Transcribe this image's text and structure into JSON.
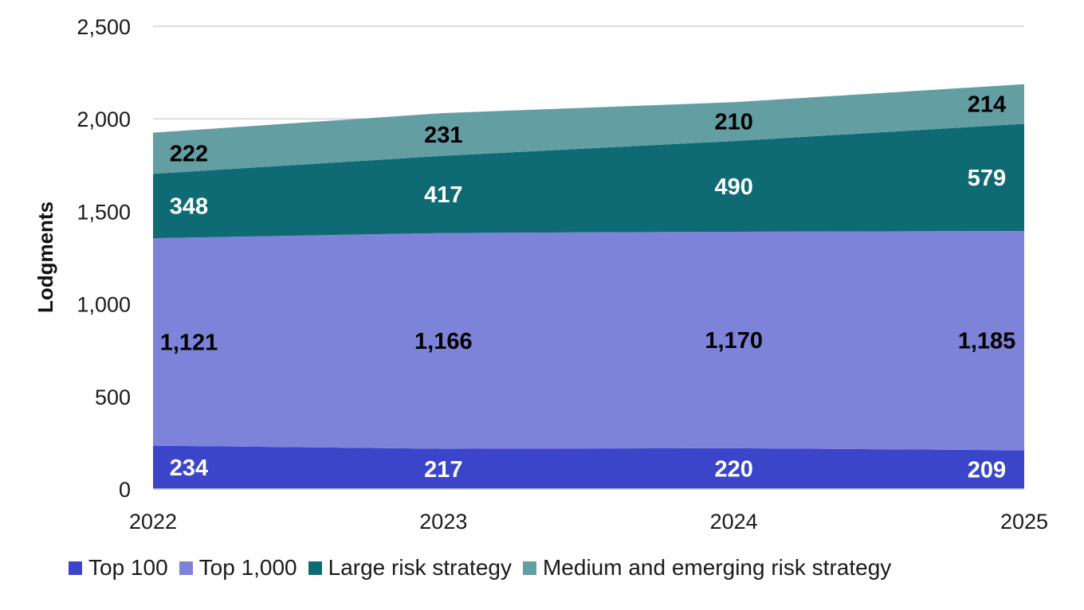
{
  "chart_data": {
    "type": "area",
    "stacked": true,
    "x": [
      "2022",
      "2023",
      "2024",
      "2025"
    ],
    "series": [
      {
        "name": "Top 100",
        "values": [
          234,
          217,
          220,
          209
        ],
        "color": "#3a45c9",
        "label_color": "#ffffff"
      },
      {
        "name": "Top 1,000",
        "values": [
          1121,
          1166,
          1170,
          1185
        ],
        "color": "#7d83d8",
        "label_color": "#000000"
      },
      {
        "name": "Large risk strategy",
        "values": [
          348,
          417,
          490,
          579
        ],
        "color": "#0f6b73",
        "label_color": "#ffffff"
      },
      {
        "name": "Medium and emerging risk strategy",
        "values": [
          222,
          231,
          210,
          214
        ],
        "color": "#639ea3",
        "label_color": "#000000"
      }
    ],
    "ylabel": "Lodgments",
    "xlabel": "",
    "ylim": [
      0,
      2500
    ],
    "yticks": [
      "0",
      "500",
      "1,000",
      "1,500",
      "2,000",
      "2,500"
    ],
    "ytick_values": [
      0,
      500,
      1000,
      1500,
      2000,
      2500
    ],
    "grid": true,
    "legend_position": "bottom"
  }
}
